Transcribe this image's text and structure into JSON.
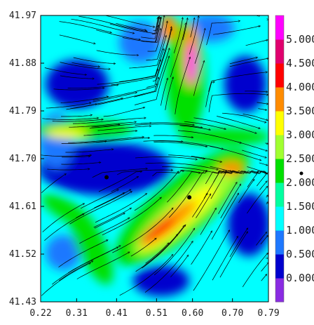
{
  "chart_data": {
    "type": "heatmap",
    "title": "",
    "xlabel": "",
    "ylabel": "",
    "xlim": [
      0.22,
      0.79
    ],
    "ylim": [
      41.43,
      41.97
    ],
    "x_ticks": [
      "0.22",
      "0.31",
      "0.41",
      "0.51",
      "0.60",
      "0.70",
      "0.79"
    ],
    "y_ticks": [
      "41.43",
      "41.52",
      "41.61",
      "41.70",
      "41.79",
      "41.88",
      "41.97"
    ],
    "colorbar": {
      "range": [
        -0.5,
        5.5
      ],
      "tick_labels": [
        "0.000",
        "0.500",
        "1.000",
        "1.500",
        "2.000",
        "2.500",
        "3.000",
        "3.500",
        "4.000",
        "4.500",
        "5.000"
      ],
      "colors": [
        "#8a2be2",
        "#0000cd",
        "#1e78ff",
        "#00ffff",
        "#00ffa0",
        "#00e000",
        "#a0ff30",
        "#ffff00",
        "#ff8c00",
        "#ff0000",
        "#e0006e",
        "#ff00ff"
      ]
    },
    "overlay": "streamlines with arrowheads",
    "markers": [
      {
        "x": 0.385,
        "y": 41.665
      },
      {
        "x": 0.592,
        "y": 41.627
      }
    ]
  }
}
